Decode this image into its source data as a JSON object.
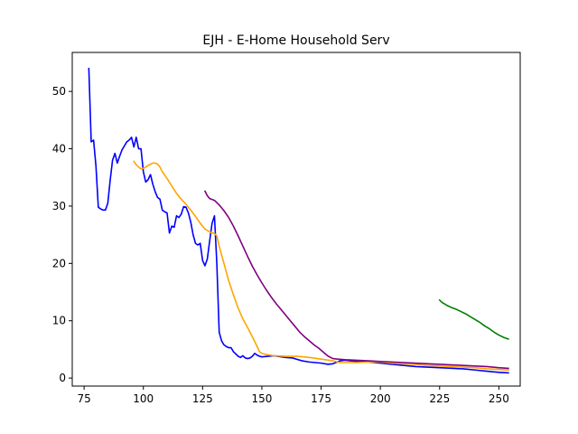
{
  "chart_data": {
    "type": "line",
    "title": "EJH - E-Home Household Serv",
    "xlabel": "",
    "ylabel": "",
    "xlim": [
      70,
      259
    ],
    "ylim": [
      -1.4,
      56.8
    ],
    "x_ticks": [
      75,
      100,
      125,
      150,
      175,
      200,
      225,
      250
    ],
    "y_ticks": [
      0,
      10,
      20,
      30,
      40,
      50
    ],
    "grid": false,
    "legend": "none",
    "series": [
      {
        "color": "#0000ff",
        "points": [
          [
            77,
            54.0
          ],
          [
            78,
            41.2
          ],
          [
            79,
            41.5
          ],
          [
            80,
            37.0
          ],
          [
            81,
            29.8
          ],
          [
            82,
            29.5
          ],
          [
            83,
            29.3
          ],
          [
            84,
            29.3
          ],
          [
            85,
            30.5
          ],
          [
            86,
            34.5
          ],
          [
            87,
            38.0
          ],
          [
            88,
            39.2
          ],
          [
            89,
            37.5
          ],
          [
            90,
            38.7
          ],
          [
            91,
            39.8
          ],
          [
            92,
            40.5
          ],
          [
            93,
            41.2
          ],
          [
            94,
            41.5
          ],
          [
            95,
            42.0
          ],
          [
            96,
            40.3
          ],
          [
            97,
            42.0
          ],
          [
            98,
            40.0
          ],
          [
            99,
            40.0
          ],
          [
            100,
            36.0
          ],
          [
            101,
            34.2
          ],
          [
            102,
            34.6
          ],
          [
            103,
            35.5
          ],
          [
            104,
            33.8
          ],
          [
            105,
            32.5
          ],
          [
            106,
            31.5
          ],
          [
            107,
            31.2
          ],
          [
            108,
            29.3
          ],
          [
            109,
            29.0
          ],
          [
            110,
            28.8
          ],
          [
            111,
            25.3
          ],
          [
            112,
            26.5
          ],
          [
            113,
            26.3
          ],
          [
            114,
            28.3
          ],
          [
            115,
            28.0
          ],
          [
            116,
            28.6
          ],
          [
            117,
            29.9
          ],
          [
            118,
            29.8
          ],
          [
            119,
            28.8
          ],
          [
            120,
            27.2
          ],
          [
            121,
            25.0
          ],
          [
            122,
            23.5
          ],
          [
            123,
            23.2
          ],
          [
            124,
            23.5
          ],
          [
            125,
            20.5
          ],
          [
            126,
            19.6
          ],
          [
            127,
            20.8
          ],
          [
            128,
            24.0
          ],
          [
            129,
            27.0
          ],
          [
            130,
            28.3
          ],
          [
            131,
            20.0
          ],
          [
            132,
            8.0
          ],
          [
            133,
            6.5
          ],
          [
            134,
            5.8
          ],
          [
            135,
            5.5
          ],
          [
            136,
            5.3
          ],
          [
            137,
            5.3
          ],
          [
            138,
            4.6
          ],
          [
            139,
            4.2
          ],
          [
            140,
            3.8
          ],
          [
            141,
            3.6
          ],
          [
            142,
            3.9
          ],
          [
            143,
            3.5
          ],
          [
            144,
            3.4
          ],
          [
            145,
            3.5
          ],
          [
            146,
            3.8
          ],
          [
            147,
            4.3
          ],
          [
            148,
            4.0
          ],
          [
            149,
            3.8
          ],
          [
            150,
            3.7
          ],
          [
            155,
            3.9
          ],
          [
            160,
            3.6
          ],
          [
            163,
            3.5
          ],
          [
            167,
            3.0
          ],
          [
            170,
            2.8
          ],
          [
            175,
            2.6
          ],
          [
            178,
            2.4
          ],
          [
            180,
            2.5
          ],
          [
            183,
            3.0
          ],
          [
            185,
            3.1
          ],
          [
            190,
            2.9
          ],
          [
            195,
            2.8
          ],
          [
            200,
            2.6
          ],
          [
            205,
            2.4
          ],
          [
            210,
            2.2
          ],
          [
            215,
            2.0
          ],
          [
            220,
            1.9
          ],
          [
            225,
            1.8
          ],
          [
            230,
            1.7
          ],
          [
            235,
            1.6
          ],
          [
            240,
            1.4
          ],
          [
            245,
            1.2
          ],
          [
            250,
            1.0
          ],
          [
            254,
            0.9
          ]
        ]
      },
      {
        "color": "#ffa500",
        "points": [
          [
            96,
            37.8
          ],
          [
            97,
            37.2
          ],
          [
            98,
            36.8
          ],
          [
            99,
            36.5
          ],
          [
            100,
            36.6
          ],
          [
            101,
            36.8
          ],
          [
            102,
            37.1
          ],
          [
            103,
            37.3
          ],
          [
            104,
            37.5
          ],
          [
            105,
            37.5
          ],
          [
            106,
            37.3
          ],
          [
            107,
            36.8
          ],
          [
            108,
            36.0
          ],
          [
            110,
            34.8
          ],
          [
            112,
            33.5
          ],
          [
            114,
            32.2
          ],
          [
            116,
            31.2
          ],
          [
            118,
            30.3
          ],
          [
            120,
            29.3
          ],
          [
            122,
            28.2
          ],
          [
            124,
            27.0
          ],
          [
            126,
            26.0
          ],
          [
            128,
            25.5
          ],
          [
            130,
            25.2
          ],
          [
            131,
            24.8
          ],
          [
            132,
            23.0
          ],
          [
            134,
            20.0
          ],
          [
            136,
            17.0
          ],
          [
            138,
            14.5
          ],
          [
            140,
            12.2
          ],
          [
            142,
            10.3
          ],
          [
            144,
            8.8
          ],
          [
            146,
            7.2
          ],
          [
            148,
            5.5
          ],
          [
            149,
            4.6
          ],
          [
            150,
            4.3
          ],
          [
            152,
            4.1
          ],
          [
            155,
            3.9
          ],
          [
            160,
            3.8
          ],
          [
            165,
            3.8
          ],
          [
            170,
            3.6
          ],
          [
            175,
            3.3
          ],
          [
            180,
            3.0
          ],
          [
            183,
            2.7
          ],
          [
            185,
            2.7
          ],
          [
            190,
            2.7
          ],
          [
            195,
            2.8
          ],
          [
            200,
            2.8
          ],
          [
            205,
            2.6
          ],
          [
            210,
            2.5
          ],
          [
            215,
            2.4
          ],
          [
            220,
            2.2
          ],
          [
            225,
            2.1
          ],
          [
            230,
            2.0
          ],
          [
            235,
            1.9
          ],
          [
            240,
            1.8
          ],
          [
            245,
            1.6
          ],
          [
            250,
            1.5
          ],
          [
            254,
            1.4
          ]
        ]
      },
      {
        "color": "#800080",
        "points": [
          [
            126,
            32.6
          ],
          [
            127,
            31.8
          ],
          [
            128,
            31.3
          ],
          [
            130,
            31.0
          ],
          [
            132,
            30.2
          ],
          [
            134,
            29.2
          ],
          [
            136,
            28.0
          ],
          [
            138,
            26.5
          ],
          [
            140,
            24.8
          ],
          [
            142,
            23.0
          ],
          [
            144,
            21.2
          ],
          [
            146,
            19.5
          ],
          [
            148,
            18.0
          ],
          [
            150,
            16.6
          ],
          [
            152,
            15.3
          ],
          [
            154,
            14.1
          ],
          [
            156,
            13.0
          ],
          [
            158,
            12.0
          ],
          [
            160,
            11.0
          ],
          [
            162,
            10.0
          ],
          [
            164,
            9.0
          ],
          [
            166,
            8.0
          ],
          [
            168,
            7.2
          ],
          [
            170,
            6.5
          ],
          [
            172,
            5.8
          ],
          [
            174,
            5.2
          ],
          [
            176,
            4.5
          ],
          [
            178,
            3.8
          ],
          [
            180,
            3.4
          ],
          [
            182,
            3.3
          ],
          [
            185,
            3.2
          ],
          [
            190,
            3.1
          ],
          [
            195,
            3.0
          ],
          [
            200,
            2.9
          ],
          [
            205,
            2.8
          ],
          [
            210,
            2.7
          ],
          [
            215,
            2.6
          ],
          [
            220,
            2.5
          ],
          [
            225,
            2.4
          ],
          [
            230,
            2.3
          ],
          [
            235,
            2.2
          ],
          [
            240,
            2.1
          ],
          [
            245,
            2.0
          ],
          [
            250,
            1.8
          ],
          [
            254,
            1.7
          ]
        ]
      },
      {
        "color": "#008000",
        "points": [
          [
            225,
            13.6
          ],
          [
            226,
            13.2
          ],
          [
            228,
            12.7
          ],
          [
            230,
            12.3
          ],
          [
            232,
            12.0
          ],
          [
            234,
            11.6
          ],
          [
            236,
            11.2
          ],
          [
            238,
            10.7
          ],
          [
            240,
            10.2
          ],
          [
            242,
            9.7
          ],
          [
            244,
            9.1
          ],
          [
            246,
            8.6
          ],
          [
            248,
            8.0
          ],
          [
            250,
            7.5
          ],
          [
            252,
            7.1
          ],
          [
            254,
            6.8
          ]
        ]
      }
    ]
  }
}
